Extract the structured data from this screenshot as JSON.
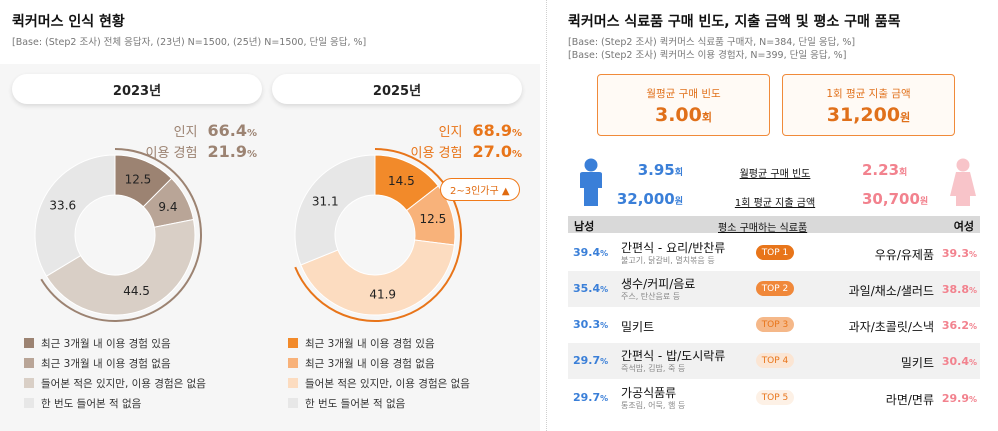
{
  "left": {
    "title": "퀵커머스 인식 현황",
    "base": "[Base: (Step2 조사) 전체 응답자, (23년) N=1500, (25년) N=1500, 단일 응답, %]",
    "stat_labels": {
      "aware": "인지",
      "use": "이용 경험"
    },
    "pct_sign": "%",
    "badge": "2~3인가구 ▲"
  },
  "right": {
    "title": "퀵커머스 식료품 구매 빈도, 지출 금액 및 평소 구매 품목",
    "base1": "[Base: (Step2 조사) 퀵커머스 식료품 구매자, N=384, 단일 응답, %]",
    "base2": "[Base: (Step2 조사) 퀵커머스 이용 경험자, N=399, 단일 응답, %]",
    "kpi": [
      {
        "label": "월평균 구매 빈도",
        "value": "3.00",
        "unit": "회"
      },
      {
        "label": "1회 평균 지출 금액",
        "value": "31,200",
        "unit": "원"
      }
    ],
    "gender": {
      "freq_label": "월평균 구매 빈도",
      "spend_label": "1회 평균 지출 금액",
      "male": {
        "freq": "3.95",
        "freq_unit": "회",
        "spend": "32,000",
        "spend_unit": "원"
      },
      "female": {
        "freq": "2.23",
        "freq_unit": "회",
        "spend": "30,700",
        "spend_unit": "원"
      }
    },
    "table": {
      "male_header": "남성",
      "mid_header": "평소 구매하는 식료품",
      "female_header": "여성",
      "pct_sign": "%",
      "rows": [
        {
          "m_pct": "39.4",
          "m_name": "간편식 - 요리/반찬류",
          "m_sub": "불고기, 닭갈비, 멸치볶음 등",
          "top": "TOP 1",
          "f_name": "우유/유제품",
          "f_pct": "39.3"
        },
        {
          "m_pct": "35.4",
          "m_name": "생수/커피/음료",
          "m_sub": "주스, 탄산음료 등",
          "top": "TOP 2",
          "f_name": "과일/채소/샐러드",
          "f_pct": "38.8"
        },
        {
          "m_pct": "30.3",
          "m_name": "밀키트",
          "m_sub": "",
          "top": "TOP 3",
          "f_name": "과자/초콜릿/스낵",
          "f_pct": "36.2"
        },
        {
          "m_pct": "29.7",
          "m_name": "간편식 - 밥/도시락류",
          "m_sub": "즉석밥, 김밥, 죽 등",
          "top": "TOP 4",
          "f_name": "밀키트",
          "f_pct": "30.4"
        },
        {
          "m_pct": "29.7",
          "m_name": "가공식품류",
          "m_sub": "통조림, 어묵, 햄 등",
          "top": "TOP 5",
          "f_name": "라면/면류",
          "f_pct": "29.9"
        }
      ],
      "top_colors": [
        "#e8751a",
        "#f0883a",
        "#f5b889",
        "#fbe5d3",
        "#fdf1e6"
      ],
      "top_text_colors": [
        "#ffffff",
        "#ffffff",
        "#e8751a",
        "#e8751a",
        "#e8751a"
      ]
    }
  },
  "chart_data": [
    {
      "type": "pie",
      "title": "2023년",
      "categories": [
        "최근 3개월 내 이용 경험 있음",
        "최근 3개월 내 이용 경험 없음",
        "들어본 적은 있지만, 이용 경험은 없음",
        "한 번도 들어본 적 없음"
      ],
      "values": [
        12.5,
        9.4,
        44.5,
        33.6
      ],
      "colors": [
        "#9c8372",
        "#b9a597",
        "#d9cfc6",
        "#e7e7e7"
      ],
      "aware": "66.4",
      "use": "21.9",
      "stat_color": "#9c8372"
    },
    {
      "type": "pie",
      "title": "2025년",
      "categories": [
        "최근 3개월 내 이용 경험 있음",
        "최근 3개월 내 이용 경험 없음",
        "들어본 적은 있지만, 이용 경험은 없음",
        "한 번도 들어본 적 없음"
      ],
      "values": [
        14.5,
        12.5,
        41.9,
        31.1
      ],
      "colors": [
        "#f28a2a",
        "#f8b27a",
        "#fcdcc0",
        "#e7e7e7"
      ],
      "aware": "68.9",
      "use": "27.0",
      "stat_color": "#e8751a"
    }
  ]
}
